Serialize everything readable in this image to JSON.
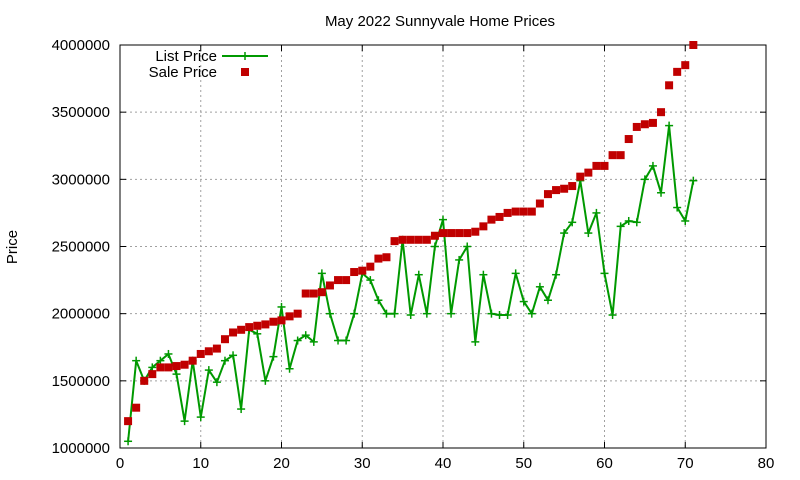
{
  "chart_data": {
    "type": "scatter",
    "title": "May 2022 Sunnyvale Home Prices",
    "xlabel": "",
    "ylabel": "Price",
    "xlim": [
      0,
      80
    ],
    "ylim": [
      1000000,
      4000000
    ],
    "x_ticks": [
      "0",
      "10",
      "20",
      "30",
      "40",
      "50",
      "60",
      "70",
      "80"
    ],
    "y_ticks": [
      "1000000",
      "1500000",
      "2000000",
      "2500000",
      "3000000",
      "3500000",
      "4000000"
    ],
    "grid": true,
    "legend_position": "top-left",
    "series": [
      {
        "name": "List Price",
        "style": "linespoints",
        "color": "#009900",
        "x": [
          1,
          2,
          3,
          4,
          5,
          6,
          7,
          8,
          9,
          10,
          11,
          12,
          13,
          14,
          15,
          16,
          17,
          18,
          19,
          20,
          21,
          22,
          23,
          24,
          25,
          26,
          27,
          28,
          29,
          30,
          31,
          32,
          33,
          34,
          35,
          36,
          37,
          38,
          39,
          40,
          41,
          42,
          43,
          44,
          45,
          46,
          47,
          48,
          49,
          50,
          51,
          52,
          53,
          54,
          55,
          56,
          57,
          58,
          59,
          60,
          61,
          62,
          63,
          64,
          65,
          66,
          67,
          68,
          69,
          70,
          71
        ],
        "values": [
          1050000,
          1650000,
          1500000,
          1600000,
          1650000,
          1700000,
          1550000,
          1200000,
          1650000,
          1230000,
          1580000,
          1490000,
          1650000,
          1690000,
          1290000,
          1880000,
          1850000,
          1500000,
          1680000,
          2050000,
          1590000,
          1800000,
          1840000,
          1790000,
          2300000,
          2000000,
          1800000,
          1800000,
          2000000,
          2300000,
          2250000,
          2100000,
          2000000,
          2000000,
          2550000,
          1990000,
          2290000,
          2000000,
          2500000,
          2700000,
          2000000,
          2400000,
          2500000,
          1790000,
          2290000,
          2000000,
          1990000,
          1990000,
          2300000,
          2090000,
          2000000,
          2200000,
          2100000,
          2290000,
          2600000,
          2680000,
          2990000,
          2600000,
          2750000,
          2300000,
          1990000,
          2650000,
          2690000,
          2680000,
          3000000,
          3100000,
          2900000,
          3400000,
          2790000,
          2690000,
          2990000
        ]
      },
      {
        "name": "Sale Price",
        "style": "points",
        "color": "#c00000",
        "x": [
          1,
          2,
          3,
          4,
          5,
          6,
          7,
          8,
          9,
          10,
          11,
          12,
          13,
          14,
          15,
          16,
          17,
          18,
          19,
          20,
          21,
          22,
          23,
          24,
          25,
          26,
          27,
          28,
          29,
          30,
          31,
          32,
          33,
          34,
          35,
          36,
          37,
          38,
          39,
          40,
          41,
          42,
          43,
          44,
          45,
          46,
          47,
          48,
          49,
          50,
          51,
          52,
          53,
          54,
          55,
          56,
          57,
          58,
          59,
          60,
          61,
          62,
          63,
          64,
          65,
          66,
          67,
          68,
          69,
          70,
          71
        ],
        "values": [
          1200000,
          1300000,
          1500000,
          1550000,
          1600000,
          1600000,
          1610000,
          1620000,
          1650000,
          1700000,
          1720000,
          1740000,
          1810000,
          1860000,
          1880000,
          1900000,
          1910000,
          1920000,
          1940000,
          1950000,
          1980000,
          2000000,
          2150000,
          2150000,
          2160000,
          2210000,
          2250000,
          2250000,
          2310000,
          2320000,
          2350000,
          2410000,
          2420000,
          2540000,
          2550000,
          2550000,
          2550000,
          2550000,
          2580000,
          2600000,
          2600000,
          2600000,
          2600000,
          2610000,
          2650000,
          2700000,
          2720000,
          2750000,
          2760000,
          2760000,
          2760000,
          2820000,
          2890000,
          2920000,
          2930000,
          2950000,
          3020000,
          3050000,
          3100000,
          3100000,
          3180000,
          3180000,
          3300000,
          3390000,
          3410000,
          3420000,
          3500000,
          3700000,
          3800000,
          3850000,
          4000000
        ]
      }
    ]
  }
}
